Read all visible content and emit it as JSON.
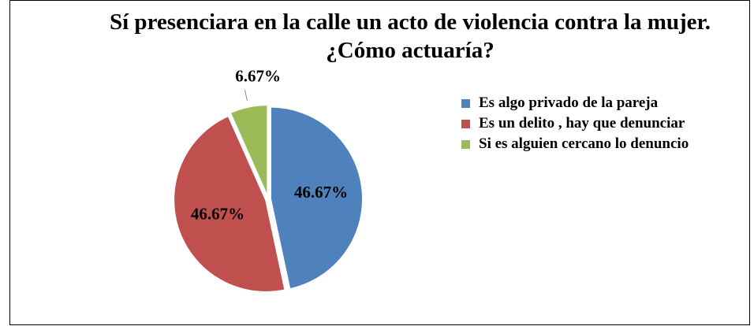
{
  "chart_data": {
    "type": "pie",
    "title": "Sí presenciara en la calle un acto de violencia contra la mujer. ¿Cómo actuaría?",
    "categories": [
      "Es algo privado de la pareja",
      "Es un delito , hay que denunciar",
      "Si es alguien cercano lo denuncio"
    ],
    "values": [
      46.67,
      46.67,
      6.67
    ],
    "value_labels": [
      "46.67%",
      "46.67%",
      "6.67%"
    ],
    "colors": [
      "#4f81bd",
      "#c0504d",
      "#9bbb59"
    ],
    "legend": "right"
  }
}
